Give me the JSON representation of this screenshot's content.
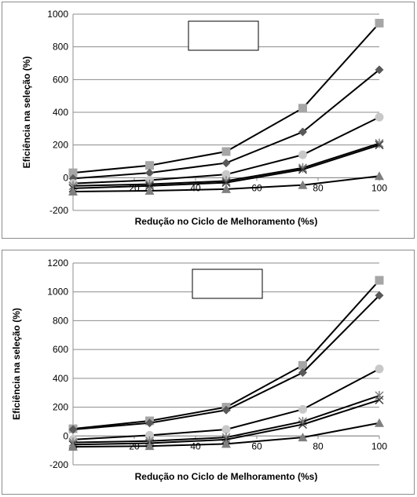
{
  "chart_data": [
    {
      "type": "line",
      "title": "",
      "xlabel": "Redução no Ciclo de Melhoramento (%s)",
      "ylabel": "Eficiência na seleção (%)",
      "xlim": [
        0,
        100
      ],
      "ylim": [
        -200,
        1000
      ],
      "xticks": [
        "0",
        "20",
        "40",
        "60",
        "80",
        "100"
      ],
      "yticks": [
        "-200",
        "0",
        "200",
        "400",
        "600",
        "800",
        "1000"
      ],
      "x": [
        0,
        25,
        50,
        75,
        100
      ],
      "legend": "top-center",
      "legend_entries": [],
      "series": [
        {
          "marker": "square",
          "color": "#a6a6a6",
          "values": [
            30,
            75,
            160,
            425,
            945
          ]
        },
        {
          "marker": "diamond",
          "color": "#595959",
          "values": [
            -5,
            30,
            90,
            280,
            660
          ]
        },
        {
          "marker": "circle",
          "color": "#c8c8c8",
          "values": [
            -35,
            -15,
            20,
            140,
            370
          ]
        },
        {
          "marker": "star",
          "color": "#7f7f7f",
          "values": [
            -50,
            -40,
            -20,
            60,
            210
          ]
        },
        {
          "marker": "x",
          "color": "#404040",
          "values": [
            -65,
            -50,
            -30,
            50,
            200
          ]
        },
        {
          "marker": "triangle",
          "color": "#7f7f7f",
          "values": [
            -85,
            -80,
            -70,
            -45,
            10
          ]
        }
      ]
    },
    {
      "type": "line",
      "title": "",
      "xlabel": "Redução no Ciclo de Melhoramento (%s)",
      "ylabel": "Eficiência na seleção (%)",
      "xlim": [
        0,
        100
      ],
      "ylim": [
        -200,
        1200
      ],
      "xticks": [
        "0",
        "20",
        "40",
        "60",
        "80",
        "100"
      ],
      "yticks": [
        "-200",
        "0",
        "200",
        "400",
        "600",
        "800",
        "1000",
        "1200"
      ],
      "x": [
        0,
        25,
        50,
        75,
        100
      ],
      "legend": "top-center",
      "legend_entries": [],
      "series": [
        {
          "marker": "square",
          "color": "#a6a6a6",
          "values": [
            50,
            105,
            200,
            490,
            1080
          ]
        },
        {
          "marker": "diamond",
          "color": "#595959",
          "values": [
            45,
            90,
            180,
            440,
            975
          ]
        },
        {
          "marker": "circle",
          "color": "#c8c8c8",
          "values": [
            -25,
            5,
            45,
            185,
            465
          ]
        },
        {
          "marker": "star",
          "color": "#7f7f7f",
          "values": [
            -45,
            -35,
            -10,
            100,
            280
          ]
        },
        {
          "marker": "x",
          "color": "#404040",
          "values": [
            -60,
            -50,
            -25,
            80,
            250
          ]
        },
        {
          "marker": "triangle",
          "color": "#7f7f7f",
          "values": [
            -75,
            -70,
            -55,
            -10,
            90
          ]
        }
      ]
    }
  ]
}
